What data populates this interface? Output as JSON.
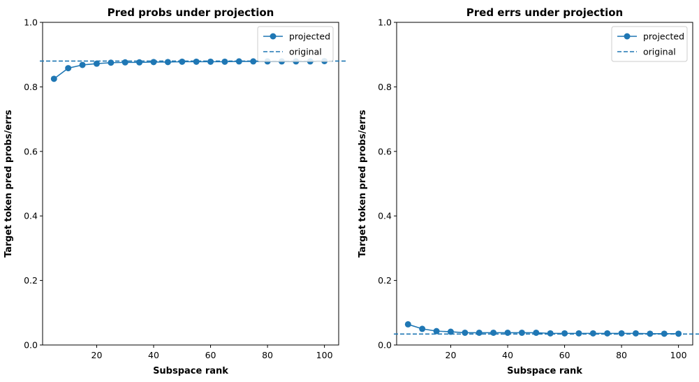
{
  "chart_data": [
    {
      "type": "line",
      "title": "Pred probs under projection",
      "xlabel": "Subspace rank",
      "ylabel": "Target token pred probs/errs",
      "xlim": [
        1,
        105
      ],
      "ylim": [
        0,
        1.0
      ],
      "xticks": [
        20,
        40,
        60,
        80,
        100
      ],
      "yticks": [
        0.0,
        0.2,
        0.4,
        0.6,
        0.8,
        1.0
      ],
      "ytick_labels": [
        "0.0",
        "0.2",
        "0.4",
        "0.6",
        "0.8",
        "1.0"
      ],
      "x": [
        5,
        10,
        15,
        20,
        25,
        30,
        35,
        40,
        45,
        50,
        55,
        60,
        65,
        70,
        75,
        80,
        85,
        90,
        95,
        100
      ],
      "series": [
        {
          "name": "projected",
          "values": [
            0.825,
            0.858,
            0.868,
            0.872,
            0.875,
            0.876,
            0.876,
            0.877,
            0.877,
            0.878,
            0.878,
            0.878,
            0.878,
            0.879,
            0.879,
            0.879,
            0.879,
            0.879,
            0.879,
            0.88
          ]
        }
      ],
      "reference_lines": [
        {
          "name": "original",
          "y": 0.88,
          "style": "dashed"
        }
      ],
      "legend_position": "top-right",
      "color": "#1f77b4",
      "grid": false
    },
    {
      "type": "line",
      "title": "Pred errs under projection",
      "xlabel": "Subspace rank",
      "ylabel": "Target token pred probs/errs",
      "xlim": [
        1,
        105
      ],
      "ylim": [
        0,
        1.0
      ],
      "xticks": [
        20,
        40,
        60,
        80,
        100
      ],
      "yticks": [
        0.0,
        0.2,
        0.4,
        0.6,
        0.8,
        1.0
      ],
      "ytick_labels": [
        "0.0",
        "0.2",
        "0.4",
        "0.6",
        "0.8",
        "1.0"
      ],
      "x": [
        5,
        10,
        15,
        20,
        25,
        30,
        35,
        40,
        45,
        50,
        55,
        60,
        65,
        70,
        75,
        80,
        85,
        90,
        95,
        100
      ],
      "series": [
        {
          "name": "projected",
          "values": [
            0.064,
            0.05,
            0.043,
            0.041,
            0.038,
            0.038,
            0.038,
            0.038,
            0.038,
            0.038,
            0.036,
            0.036,
            0.036,
            0.036,
            0.036,
            0.036,
            0.036,
            0.035,
            0.035,
            0.035
          ]
        }
      ],
      "reference_lines": [
        {
          "name": "original",
          "y": 0.034,
          "style": "dashed"
        }
      ],
      "legend_position": "top-right",
      "color": "#1f77b4",
      "grid": false
    }
  ]
}
